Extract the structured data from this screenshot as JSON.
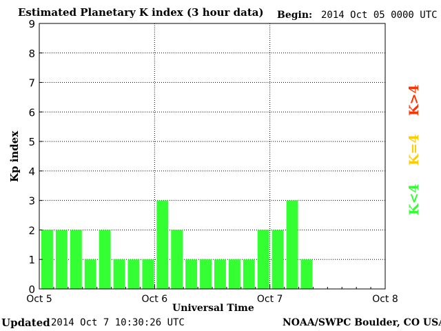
{
  "header": {
    "title": "Estimated Planetary K index (3 hour data)",
    "begin_label": "Begin:",
    "begin_value": "2014 Oct 05 0000 UTC"
  },
  "footer": {
    "updated_label": "Updated",
    "updated_value": "2014 Oct  7 10:30:26 UTC",
    "credit": "NOAA/SWPC Boulder, CO USA"
  },
  "legend": {
    "low": {
      "label": "K<4",
      "color": "#33ff33"
    },
    "mid": {
      "label": "K=4",
      "color": "#ffcc00"
    },
    "high": {
      "label": "K>4",
      "color": "#ff3300"
    }
  },
  "chart_data": {
    "type": "bar",
    "title": "Estimated Planetary K index (3 hour data)",
    "xlabel": "Universal Time",
    "ylabel": "Kp index",
    "ylim": [
      0,
      9
    ],
    "yticks": [
      "0",
      "1",
      "2",
      "3",
      "4",
      "5",
      "6",
      "7",
      "8",
      "9"
    ],
    "xticks": [
      "Oct 5",
      "Oct 6",
      "Oct 7",
      "Oct 8"
    ],
    "grid": true,
    "bar_color": "#33ff33",
    "values": [
      2,
      2,
      2,
      1,
      2,
      1,
      1,
      1,
      3,
      2,
      1,
      1,
      1,
      1,
      1,
      2,
      2,
      3,
      1
    ]
  }
}
